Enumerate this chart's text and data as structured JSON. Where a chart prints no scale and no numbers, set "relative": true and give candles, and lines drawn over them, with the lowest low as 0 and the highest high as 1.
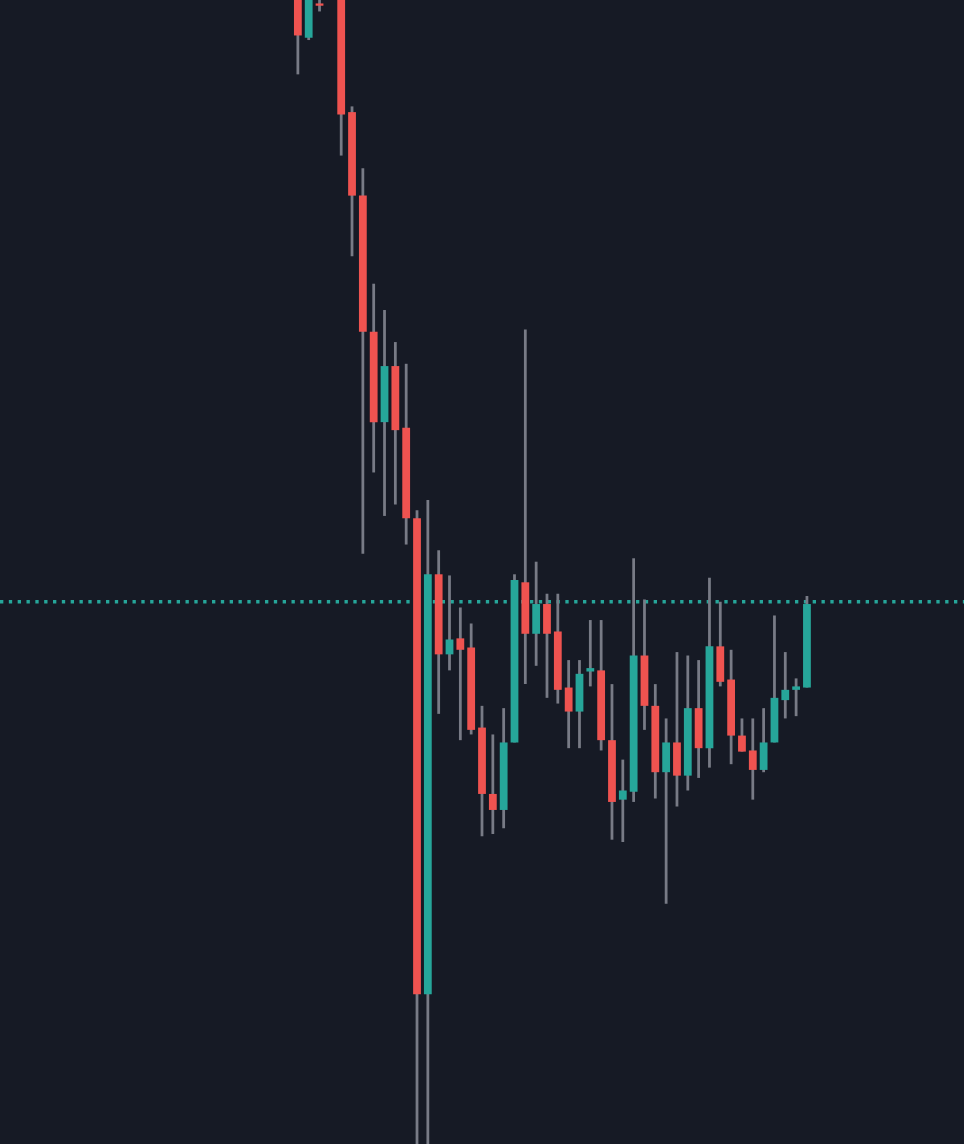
{
  "chart_data": {
    "type": "candlestick",
    "relative": true,
    "categories": [
      null,
      null,
      null,
      null,
      null,
      null,
      null,
      null,
      null,
      null,
      null,
      null,
      null,
      null,
      null,
      null,
      null,
      null,
      null,
      null,
      null,
      null,
      null,
      null,
      null,
      null,
      null,
      null,
      null,
      null,
      null,
      null,
      null,
      null,
      null,
      null,
      null,
      null,
      null,
      null,
      null,
      null,
      null,
      null,
      null,
      null,
      null,
      null,
      null,
      null,
      null,
      null,
      null,
      null,
      null,
      null,
      null,
      null,
      null,
      null,
      null,
      null,
      null,
      null,
      null,
      null,
      null,
      null,
      null,
      null,
      null,
      null,
      null,
      null,
      null,
      null,
      null,
      null,
      null,
      null,
      null,
      null,
      null,
      null,
      null,
      null,
      null,
      null,
      null
    ],
    "ohlc": [
      null,
      null,
      null,
      null,
      null,
      null,
      null,
      null,
      null,
      null,
      null,
      null,
      null,
      null,
      null,
      null,
      null,
      null,
      null,
      null,
      null,
      null,
      null,
      null,
      null,
      null,
      null,
      [
        1,
        1,
        0.935,
        0.969
      ],
      [
        0.967,
        1,
        0.965,
        1
      ],
      [
        0.997,
        1,
        0.99,
        0.995
      ],
      null,
      [
        1,
        1,
        0.864,
        0.9
      ],
      [
        0.902,
        0.907,
        0.776,
        0.829
      ],
      [
        0.829,
        0.853,
        0.516,
        0.71
      ],
      [
        0.71,
        0.752,
        0.587,
        0.631
      ],
      [
        0.631,
        0.729,
        0.549,
        0.68
      ],
      [
        0.68,
        0.701,
        0.559,
        0.624
      ],
      [
        0.626,
        0.682,
        0.524,
        0.547
      ],
      [
        0.547,
        0.554,
        0,
        0.131
      ],
      [
        0.131,
        0.563,
        0,
        0.498
      ],
      [
        0.498,
        0.519,
        0.376,
        0.428
      ],
      [
        0.428,
        0.497,
        0.414,
        0.441
      ],
      [
        0.442,
        0.469,
        0.353,
        0.432
      ],
      [
        0.434,
        0.455,
        0.358,
        0.362
      ],
      [
        0.364,
        0.383,
        0.269,
        0.306
      ],
      [
        0.306,
        0.358,
        0.271,
        0.292
      ],
      [
        0.292,
        0.381,
        0.276,
        0.351
      ],
      [
        0.351,
        0.498,
        0.351,
        0.493
      ],
      [
        0.491,
        0.712,
        0.402,
        0.446
      ],
      [
        0.446,
        0.509,
        0.418,
        0.472
      ],
      [
        0.472,
        0.481,
        0.39,
        0.446
      ],
      [
        0.448,
        0.481,
        0.385,
        0.397
      ],
      [
        0.399,
        0.423,
        0.346,
        0.378
      ],
      [
        0.378,
        0.423,
        0.346,
        0.411
      ],
      [
        0.413,
        0.458,
        0.4,
        0.416
      ],
      [
        0.414,
        0.458,
        0.344,
        0.353
      ],
      [
        0.353,
        0.402,
        0.266,
        0.299
      ],
      [
        0.301,
        0.336,
        0.264,
        0.309
      ],
      [
        0.308,
        0.512,
        0.299,
        0.427
      ],
      [
        0.427,
        0.476,
        0.362,
        0.383
      ],
      [
        0.383,
        0.402,
        0.302,
        0.325
      ],
      [
        0.325,
        0.372,
        0.21,
        0.351
      ],
      [
        0.351,
        0.43,
        0.295,
        0.322
      ],
      [
        0.322,
        0.427,
        0.309,
        0.381
      ],
      [
        0.381,
        0.423,
        0.32,
        0.346
      ],
      [
        0.346,
        0.495,
        0.329,
        0.435
      ],
      [
        0.435,
        0.474,
        0.4,
        0.404
      ],
      [
        0.406,
        0.432,
        0.332,
        0.357
      ],
      [
        0.357,
        0.372,
        0.343,
        0.343
      ],
      [
        0.344,
        0.372,
        0.301,
        0.327
      ],
      [
        0.327,
        0.381,
        0.325,
        0.351
      ],
      [
        0.351,
        0.462,
        0.351,
        0.39
      ],
      [
        0.388,
        0.43,
        0.372,
        0.397
      ],
      [
        0.397,
        0.407,
        0.374,
        0.4
      ],
      [
        0.399,
        0.479,
        0.399,
        0.472
      ],
      null,
      null,
      null,
      null,
      null,
      null,
      null,
      null,
      null,
      null,
      null,
      null,
      null,
      null
    ],
    "colors": [
      null,
      null,
      null,
      null,
      null,
      null,
      null,
      null,
      null,
      null,
      null,
      null,
      null,
      null,
      null,
      null,
      null,
      null,
      null,
      null,
      null,
      null,
      null,
      null,
      null,
      null,
      null,
      "#ef5350",
      "#26a69a",
      "#ef5350",
      null,
      "#ef5350",
      "#ef5350",
      "#ef5350",
      "#ef5350",
      "#26a69a",
      "#ef5350",
      "#ef5350",
      "#ef5350",
      "#26a69a",
      "#ef5350",
      "#26a69a",
      "#ef5350",
      "#ef5350",
      "#ef5350",
      "#ef5350",
      "#26a69a",
      "#26a69a",
      "#ef5350",
      "#26a69a",
      "#ef5350",
      "#ef5350",
      "#ef5350",
      "#26a69a",
      "#26a69a",
      "#ef5350",
      "#ef5350",
      "#26a69a",
      "#26a69a",
      "#ef5350",
      "#ef5350",
      "#26a69a",
      "#ef5350",
      "#26a69a",
      "#ef5350",
      "#26a69a",
      "#ef5350",
      "#ef5350",
      "#ef5350",
      "#ef5350",
      "#26a69a",
      "#26a69a",
      "#26a69a",
      "#26a69a",
      "#26a69a",
      null,
      null,
      null,
      null,
      null,
      null,
      null,
      null,
      null,
      null,
      null,
      null,
      null,
      null
    ],
    "ref_lines": [
      {
        "axis": "y",
        "value": 0.474,
        "color": "#26a69a",
        "line_style": "dotted"
      }
    ]
  }
}
